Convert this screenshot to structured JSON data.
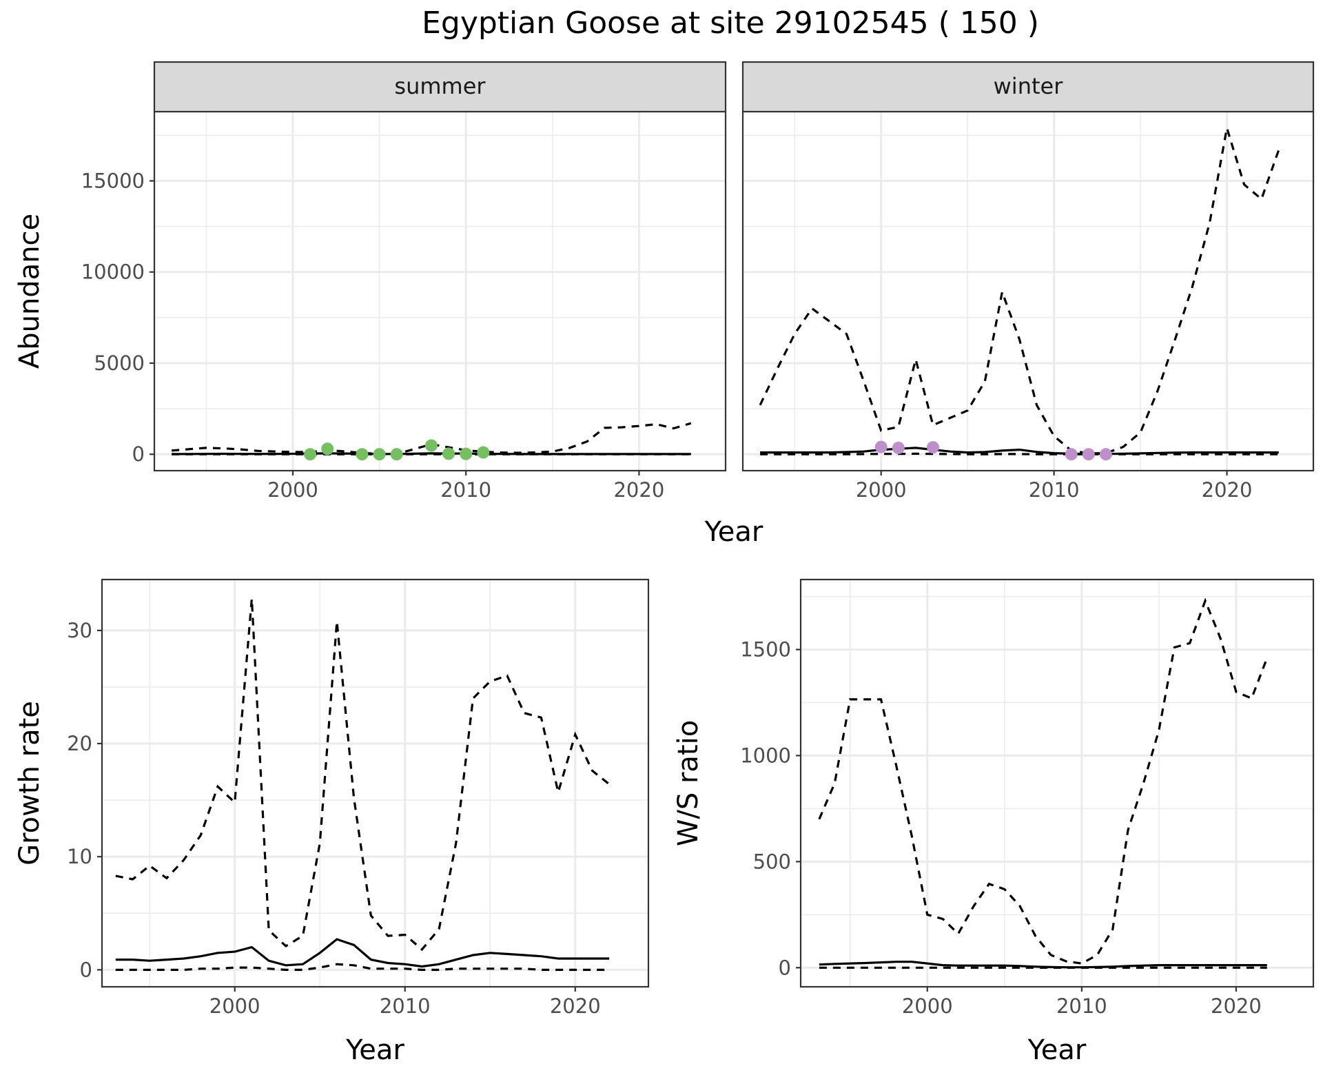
{
  "title": "Egyptian Goose at site 29102545 ( 150 )",
  "colors": {
    "summer_points": "#74c060",
    "winter_points": "#bf8fcc",
    "line": "#000000",
    "strip": "#d9d9d9"
  },
  "chart_data": [
    {
      "type": "line",
      "panel": "abundance",
      "ylabel": "Abundance",
      "xlabel": "Year",
      "facets": [
        "summer",
        "winter"
      ],
      "xlim": [
        1992,
        2025
      ],
      "ylim": [
        -900,
        18800
      ],
      "x_ticks": [
        2000,
        2010,
        2020
      ],
      "x_tick_labels": [
        "2000",
        "2010",
        "2020"
      ],
      "y_ticks": [
        0,
        5000,
        10000,
        15000
      ],
      "y_tick_labels": [
        "0",
        "5000",
        "10000",
        "15000"
      ],
      "grid": true,
      "summer": {
        "x": [
          1993,
          1994,
          1995,
          1996,
          1997,
          1998,
          1999,
          2000,
          2001,
          2002,
          2003,
          2004,
          2005,
          2006,
          2007,
          2008,
          2009,
          2010,
          2011,
          2012,
          2013,
          2014,
          2015,
          2016,
          2017,
          2018,
          2019,
          2020,
          2021,
          2022,
          2023
        ],
        "mean": [
          10,
          15,
          20,
          25,
          20,
          20,
          20,
          25,
          40,
          50,
          40,
          25,
          15,
          15,
          30,
          50,
          40,
          40,
          30,
          20,
          15,
          10,
          10,
          10,
          10,
          10,
          10,
          10,
          10,
          10,
          10
        ],
        "upper": [
          200,
          280,
          350,
          320,
          270,
          180,
          150,
          130,
          120,
          220,
          160,
          70,
          30,
          20,
          280,
          550,
          380,
          220,
          140,
          100,
          80,
          100,
          150,
          350,
          700,
          1450,
          1480,
          1550,
          1650,
          1420,
          1700
        ],
        "lower": [
          0,
          0,
          0,
          0,
          0,
          0,
          0,
          0,
          0,
          0,
          0,
          0,
          0,
          0,
          0,
          0,
          0,
          0,
          0,
          0,
          0,
          0,
          0,
          0,
          0,
          0,
          0,
          0,
          0,
          0,
          0
        ],
        "observed_x": [
          2001,
          2002,
          2004,
          2005,
          2006,
          2008,
          2009,
          2010,
          2011
        ],
        "observed_y": [
          0,
          300,
          0,
          0,
          0,
          480,
          30,
          20,
          100
        ]
      },
      "winter": {
        "x": [
          1993,
          1994,
          1995,
          1996,
          1997,
          1998,
          1999,
          2000,
          2001,
          2002,
          2003,
          2004,
          2005,
          2006,
          2007,
          2008,
          2009,
          2010,
          2011,
          2012,
          2013,
          2014,
          2015,
          2016,
          2017,
          2018,
          2019,
          2020,
          2021,
          2022,
          2023
        ],
        "mean": [
          100,
          100,
          100,
          100,
          100,
          120,
          150,
          250,
          300,
          350,
          250,
          150,
          100,
          120,
          200,
          250,
          130,
          60,
          30,
          20,
          20,
          30,
          50,
          70,
          90,
          100,
          100,
          100,
          100,
          100,
          100
        ],
        "upper": [
          2700,
          4700,
          6600,
          8000,
          7300,
          6600,
          4000,
          1300,
          1500,
          5200,
          1600,
          2000,
          2400,
          4000,
          8900,
          6300,
          2700,
          1000,
          200,
          50,
          60,
          400,
          1200,
          3500,
          6300,
          9200,
          12700,
          17900,
          14800,
          14000,
          16700
        ],
        "lower": [
          0,
          0,
          0,
          0,
          0,
          0,
          10,
          20,
          20,
          30,
          20,
          10,
          0,
          0,
          10,
          10,
          0,
          0,
          0,
          0,
          0,
          0,
          0,
          0,
          0,
          0,
          0,
          0,
          0,
          0,
          0
        ],
        "observed_x": [
          2000,
          2001,
          2003,
          2011,
          2012,
          2013
        ],
        "observed_y": [
          400,
          350,
          380,
          0,
          0,
          0
        ]
      }
    },
    {
      "type": "line",
      "panel": "growth_rate",
      "ylabel": "Growth rate",
      "xlabel": "Year",
      "xlim": [
        1992.2,
        2024.3
      ],
      "ylim": [
        -1.5,
        34.5
      ],
      "x_ticks": [
        2000,
        2010,
        2020
      ],
      "x_tick_labels": [
        "2000",
        "2010",
        "2020"
      ],
      "y_ticks": [
        0,
        10,
        20,
        30
      ],
      "y_tick_labels": [
        "0",
        "10",
        "20",
        "30"
      ],
      "grid": true,
      "x": [
        1993,
        1994,
        1995,
        1996,
        1997,
        1998,
        1999,
        2000,
        2001,
        2002,
        2003,
        2004,
        2005,
        2006,
        2007,
        2008,
        2009,
        2010,
        2011,
        2012,
        2013,
        2014,
        2015,
        2016,
        2017,
        2018,
        2019,
        2020,
        2021,
        2022
      ],
      "mean": [
        0.9,
        0.9,
        0.8,
        0.9,
        1.0,
        1.2,
        1.5,
        1.6,
        2.0,
        0.8,
        0.4,
        0.5,
        1.5,
        2.7,
        2.2,
        0.9,
        0.6,
        0.5,
        0.3,
        0.5,
        0.9,
        1.3,
        1.5,
        1.4,
        1.3,
        1.2,
        1.0,
        1.0,
        1.0,
        1.0
      ],
      "upper": [
        8.3,
        8.0,
        9.2,
        8.1,
        9.7,
        11.9,
        16.2,
        14.8,
        32.8,
        3.5,
        2.1,
        3.0,
        11.2,
        30.8,
        15.2,
        4.8,
        3.0,
        3.1,
        1.8,
        3.6,
        11.2,
        24.0,
        25.5,
        26.0,
        22.7,
        22.3,
        15.7,
        20.8,
        17.6,
        16.4
      ],
      "lower": [
        0.0,
        0.0,
        0.0,
        0.0,
        0.0,
        0.1,
        0.1,
        0.2,
        0.2,
        0.1,
        0.0,
        0.0,
        0.2,
        0.5,
        0.4,
        0.1,
        0.1,
        0.1,
        0.0,
        0.0,
        0.1,
        0.1,
        0.1,
        0.1,
        0.1,
        0.0,
        0.0,
        0.0,
        0.0,
        0.0
      ]
    },
    {
      "type": "line",
      "panel": "ws_ratio",
      "ylabel": "W/S ratio",
      "xlabel": "Year",
      "xlim": [
        1991.8,
        2025.0
      ],
      "ylim": [
        -90,
        1830
      ],
      "x_ticks": [
        2000,
        2010,
        2020
      ],
      "x_tick_labels": [
        "2000",
        "2010",
        "2020"
      ],
      "y_ticks": [
        0,
        500,
        1000,
        1500
      ],
      "y_tick_labels": [
        "0",
        "500",
        "1000",
        "1500"
      ],
      "grid": true,
      "x": [
        1993,
        1994,
        1995,
        1996,
        1997,
        1998,
        1999,
        2000,
        2001,
        2002,
        2003,
        2004,
        2005,
        2006,
        2007,
        2008,
        2009,
        2010,
        2011,
        2012,
        2013,
        2014,
        2015,
        2016,
        2017,
        2018,
        2019,
        2020,
        2021,
        2022
      ],
      "mean": [
        15,
        18,
        20,
        22,
        25,
        28,
        28,
        20,
        12,
        10,
        10,
        10,
        10,
        8,
        5,
        3,
        2,
        2,
        3,
        5,
        8,
        10,
        12,
        12,
        12,
        12,
        12,
        12,
        12,
        12
      ],
      "upper": [
        700,
        870,
        1265,
        1265,
        1265,
        950,
        620,
        250,
        230,
        160,
        290,
        395,
        370,
        290,
        150,
        60,
        30,
        20,
        60,
        180,
        650,
        870,
        1120,
        1510,
        1530,
        1730,
        1550,
        1300,
        1270,
        1460
      ],
      "lower": [
        0,
        0,
        0,
        0,
        0,
        0,
        0,
        0,
        0,
        0,
        0,
        0,
        0,
        0,
        0,
        0,
        0,
        0,
        0,
        0,
        0,
        0,
        0,
        0,
        0,
        0,
        0,
        0,
        0,
        0
      ]
    }
  ]
}
